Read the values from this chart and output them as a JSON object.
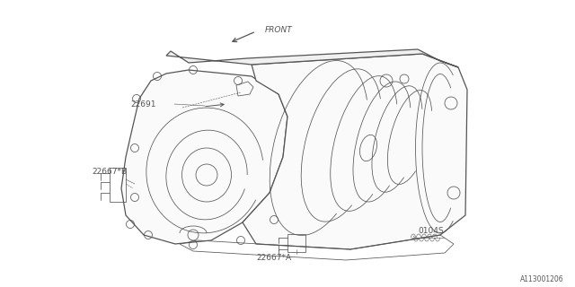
{
  "bg_color": "#ffffff",
  "line_color": "#555555",
  "text_color": "#555555",
  "diagram_ref": "A113001206",
  "front_label": "FRONT",
  "figsize": [
    6.4,
    3.2
  ],
  "dpi": 100,
  "label_22691": "22691",
  "label_22667B": "22667*B",
  "label_22667A": "22667*A",
  "label_0104S": "0104S"
}
